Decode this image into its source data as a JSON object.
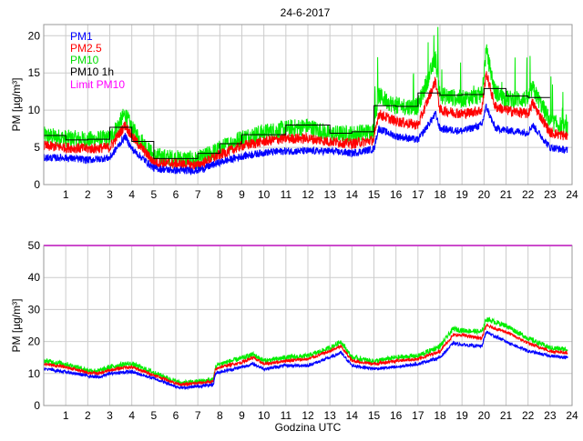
{
  "chart_data": [
    {
      "type": "line",
      "title": "24-6-2017",
      "xlabel": "",
      "ylabel": "PM [µg/m³]",
      "xlim": [
        0,
        24
      ],
      "ylim": [
        0,
        21.5
      ],
      "xticks": [
        "1",
        "2",
        "3",
        "4",
        "5",
        "6",
        "7",
        "8",
        "9",
        "10",
        "11",
        "12",
        "13",
        "14",
        "15",
        "16",
        "17",
        "18",
        "19",
        "20",
        "21",
        "22",
        "23",
        "24"
      ],
      "yticks": [
        "0",
        "5",
        "10",
        "15",
        "20"
      ],
      "ytick_values": [
        0,
        5,
        10,
        15,
        20
      ],
      "grid": true,
      "legend_position": "top-left",
      "legend": [
        {
          "label": "PM1",
          "color": "#0000ff"
        },
        {
          "label": "PM2.5",
          "color": "#ff0000"
        },
        {
          "label": "PM10",
          "color": "#00ee00"
        },
        {
          "label": "PM10 1h",
          "color": "#000000"
        },
        {
          "label": "Limit PM10",
          "color": "#ff00ff"
        }
      ],
      "x": [
        0,
        1,
        2,
        3,
        3.7,
        4,
        5,
        6,
        7,
        8,
        9,
        10,
        11,
        12,
        13,
        14,
        15,
        15.2,
        16,
        17,
        17.8,
        18,
        19,
        19.9,
        20.1,
        20.5,
        21,
        22,
        22.2,
        23,
        23.8
      ],
      "series": [
        {
          "name": "PM10",
          "color": "#00ee00",
          "noise": 1.2,
          "values": [
            6.6,
            6.2,
            6.0,
            6.2,
            9.5,
            7.5,
            3.8,
            3.5,
            3.3,
            4.8,
            6.3,
            7.0,
            7.5,
            7.8,
            6.8,
            6.8,
            7.2,
            12,
            10.5,
            10.5,
            17,
            12,
            11.5,
            12,
            18,
            12.5,
            11.5,
            11.5,
            13,
            8.5,
            7.5
          ]
        },
        {
          "name": "PM2.5",
          "color": "#ff0000",
          "noise": 0.7,
          "values": [
            5.2,
            5.0,
            4.8,
            5.0,
            8.0,
            6.5,
            3.0,
            2.8,
            2.6,
            4.0,
            5.2,
            5.8,
            6.2,
            6.2,
            5.8,
            5.5,
            6.0,
            9.5,
            8.5,
            8.0,
            14,
            10,
            9.5,
            10,
            15,
            10.5,
            10,
            9.5,
            11,
            7,
            6.5
          ]
        },
        {
          "name": "PM1",
          "color": "#0000ff",
          "noise": 0.5,
          "values": [
            3.6,
            3.6,
            3.3,
            3.6,
            6.5,
            4.8,
            2.2,
            1.9,
            1.9,
            3.0,
            3.8,
            4.3,
            4.5,
            4.5,
            4.5,
            4.2,
            4.8,
            7.5,
            6.5,
            6.0,
            9.5,
            7.5,
            7.2,
            8.0,
            10.5,
            7.6,
            7.3,
            7.0,
            8.0,
            5.0,
            4.6
          ]
        }
      ],
      "hourly": {
        "name": "PM10 1h",
        "color": "#000000",
        "values": [
          6.6,
          6.0,
          6.1,
          7.7,
          5.8,
          3.5,
          3.5,
          4.2,
          5.5,
          6.7,
          6.7,
          8.0,
          8.0,
          6.9,
          7.1,
          10.6,
          10.5,
          12.3,
          12.0,
          12.1,
          12.9,
          11.9,
          11.7
        ]
      }
    },
    {
      "type": "line",
      "title": "",
      "xlabel": "Godzina UTC",
      "ylabel": "PM [µg/m³]",
      "xlim": [
        0,
        24
      ],
      "ylim": [
        0,
        50
      ],
      "xticks": [
        "1",
        "2",
        "3",
        "4",
        "5",
        "6",
        "7",
        "8",
        "9",
        "10",
        "11",
        "12",
        "13",
        "14",
        "15",
        "16",
        "17",
        "18",
        "19",
        "20",
        "21",
        "22",
        "23",
        "24"
      ],
      "yticks": [
        "0",
        "10",
        "20",
        "30",
        "40",
        "50"
      ],
      "ytick_values": [
        0,
        10,
        20,
        30,
        40,
        50
      ],
      "grid": true,
      "x": [
        0,
        1,
        2,
        2.5,
        3,
        3.7,
        4,
        5,
        6,
        6.3,
        7,
        7.7,
        7.8,
        8,
        9,
        9.5,
        10,
        10.1,
        11,
        12,
        13,
        13.5,
        14,
        15,
        16,
        17,
        18,
        18.6,
        19,
        19.9,
        20.1,
        21,
        22,
        23,
        23.8
      ],
      "series": [
        {
          "name": "PM10",
          "color": "#00ee00",
          "noise": 0.8,
          "values": [
            14,
            13,
            11,
            10.8,
            12,
            13,
            13,
            10.3,
            7.5,
            7,
            7.5,
            8,
            12,
            13,
            14.8,
            16,
            14,
            14,
            15,
            15.5,
            18,
            20,
            15,
            13.8,
            15,
            15.5,
            18.5,
            24,
            23.5,
            23,
            27,
            25,
            21,
            18,
            17.5
          ]
        },
        {
          "name": "PM2.5",
          "color": "#ff0000",
          "noise": 0.5,
          "values": [
            13,
            12,
            10.3,
            10,
            11,
            12,
            12,
            9.5,
            7,
            6.5,
            7,
            7.5,
            11.2,
            12,
            13.5,
            15,
            13,
            13,
            14,
            14.5,
            17,
            18.5,
            14,
            13,
            14,
            14.5,
            17,
            22,
            22,
            21,
            25,
            23,
            19.5,
            17,
            16.5
          ]
        },
        {
          "name": "PM1",
          "color": "#0000ff",
          "noise": 0.5,
          "values": [
            11.5,
            10.5,
            9.3,
            8.8,
            10,
            10.5,
            10.5,
            8.5,
            6,
            5.5,
            6,
            6.5,
            10,
            10.5,
            12,
            13,
            11.5,
            11.5,
            12.5,
            12.5,
            15,
            16.5,
            12.5,
            11.5,
            12,
            13,
            15,
            19.5,
            19,
            18.5,
            23,
            20,
            17,
            15.5,
            15
          ]
        }
      ],
      "limit": {
        "name": "Limit PM10",
        "color": "#ff00ff",
        "value": 50
      }
    }
  ]
}
